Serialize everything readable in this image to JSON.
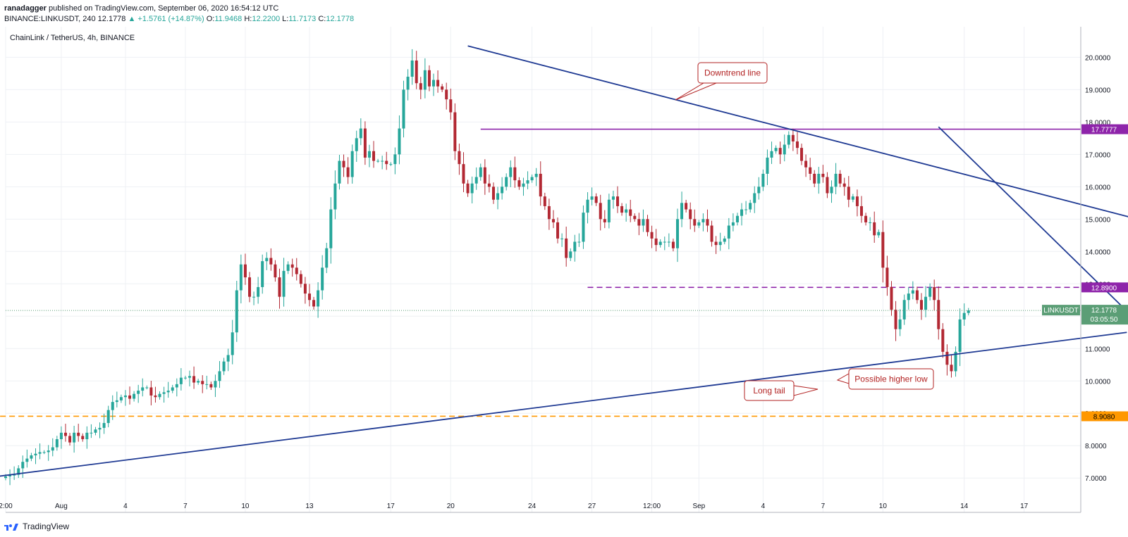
{
  "header": {
    "line1": {
      "user": "ranadagger",
      "rest": " published on TradingView.com, September 06, 2020 16:54:12 UTC"
    },
    "line2": {
      "prefix": "BINANCE:LINKUSDT, 240 ",
      "last": "12.1778",
      "change": "▲ +1.5761 (+14.87%)",
      "o_label": "O:",
      "o": "11.9468",
      "h_label": "H:",
      "h": "12.2200",
      "l_label": "L:",
      "l": "11.7173",
      "c_label": "C:",
      "c": "12.1778"
    }
  },
  "symbol_title": "ChainLink / TetherUS, 4h, BINANCE",
  "footer_brand": "TradingView",
  "colors": {
    "up": "#26a69a",
    "down": "#b22833",
    "trendline": "#1f3a93",
    "resistance": "#8e24aa",
    "support": "#ff9800",
    "annotation": "#b22222",
    "price_tag": "#5b9e76"
  },
  "chart_data": {
    "type": "candlestick",
    "title": "ChainLink / TetherUS, 4h, BINANCE",
    "timeframe": "4h",
    "ylim": [
      6.2,
      20.9
    ],
    "yticks": [
      7,
      8,
      9,
      10,
      11,
      12,
      13,
      14,
      15,
      16,
      17,
      18,
      19,
      20
    ],
    "ytick_labels": [
      "7.0000",
      "8.0000",
      "9.0000",
      "10.0000",
      "11.0000",
      "12.0000",
      "13.0000",
      "14.0000",
      "15.0000",
      "16.0000",
      "17.0000",
      "18.0000",
      "19.0000",
      "20.0000"
    ],
    "xticks": [
      {
        "label": "2:00",
        "bar": 0
      },
      {
        "label": "Aug",
        "bar": 13
      },
      {
        "label": "4",
        "bar": 28
      },
      {
        "label": "7",
        "bar": 42
      },
      {
        "label": "10",
        "bar": 56
      },
      {
        "label": "13",
        "bar": 71
      },
      {
        "label": "17",
        "bar": 90
      },
      {
        "label": "20",
        "bar": 104
      },
      {
        "label": "24",
        "bar": 123
      },
      {
        "label": "27",
        "bar": 137
      },
      {
        "label": "12:00",
        "bar": 151
      },
      {
        "label": "Sep",
        "bar": 162
      },
      {
        "label": "4",
        "bar": 177
      },
      {
        "label": "7",
        "bar": 191
      },
      {
        "label": "10",
        "bar": 205
      },
      {
        "label": "14",
        "bar": 224
      },
      {
        "label": "17",
        "bar": 238
      }
    ],
    "closes": [
      7.05,
      7.1,
      7.1,
      7.3,
      7.5,
      7.6,
      7.7,
      7.75,
      7.8,
      7.8,
      7.85,
      7.95,
      8.2,
      8.4,
      8.3,
      8.1,
      8.4,
      8.3,
      8.2,
      8.4,
      8.4,
      8.5,
      8.55,
      8.7,
      9.1,
      9.35,
      9.4,
      9.5,
      9.55,
      9.45,
      9.6,
      9.7,
      9.8,
      9.8,
      9.55,
      9.5,
      9.6,
      9.65,
      9.7,
      9.8,
      9.9,
      10.1,
      10.1,
      10.15,
      9.95,
      10.0,
      9.9,
      9.9,
      9.8,
      10.0,
      10.3,
      10.6,
      10.8,
      11.5,
      12.8,
      13.6,
      13.2,
      12.6,
      12.6,
      12.9,
      13.7,
      13.8,
      13.6,
      13.2,
      12.6,
      13.4,
      13.6,
      13.5,
      13.3,
      13.0,
      12.7,
      12.5,
      12.3,
      12.8,
      13.5,
      14.1,
      15.3,
      16.1,
      16.8,
      16.6,
      16.3,
      17.1,
      17.5,
      17.8,
      16.9,
      17.1,
      16.8,
      16.8,
      16.8,
      16.7,
      16.7,
      17.0,
      17.8,
      19.0,
      19.4,
      19.9,
      19.2,
      19.0,
      19.6,
      19.1,
      19.3,
      19.1,
      19.0,
      18.7,
      18.3,
      17.1,
      16.7,
      16.1,
      15.8,
      16.1,
      16.3,
      16.6,
      16.1,
      16.0,
      15.6,
      15.8,
      16.0,
      16.3,
      16.6,
      16.2,
      16.0,
      16.1,
      16.2,
      16.3,
      16.4,
      15.7,
      15.4,
      15.0,
      14.9,
      14.4,
      14.4,
      13.8,
      14.0,
      14.3,
      14.3,
      15.2,
      15.6,
      15.7,
      15.5,
      15.0,
      14.9,
      15.6,
      15.7,
      15.4,
      15.2,
      15.3,
      15.1,
      15.0,
      14.8,
      15.0,
      14.6,
      14.4,
      14.2,
      14.3,
      14.3,
      14.3,
      14.1,
      15.0,
      15.5,
      15.3,
      15.0,
      14.8,
      14.9,
      15.0,
      14.8,
      14.3,
      14.2,
      14.3,
      14.4,
      14.8,
      14.9,
      15.1,
      15.3,
      15.3,
      15.5,
      15.8,
      16.0,
      16.4,
      16.9,
      17.1,
      17.2,
      17.0,
      17.3,
      17.6,
      17.4,
      17.2,
      16.8,
      16.6,
      16.4,
      16.1,
      16.4,
      16.3,
      15.8,
      16.0,
      16.4,
      16.1,
      16.0,
      15.6,
      15.7,
      15.4,
      15.1,
      14.9,
      14.9,
      14.5,
      14.6,
      13.5,
      12.9,
      12.2,
      11.6,
      11.9,
      12.5,
      12.7,
      12.8,
      12.5,
      12.2,
      12.6,
      12.9,
      12.5,
      11.6,
      10.9,
      10.5,
      10.3,
      10.9,
      11.9,
      12.1,
      12.18
    ]
  },
  "overlays": {
    "downtrend_upper": {
      "from_bar": 108,
      "from_price": 20.35,
      "to_bar": 266,
      "to_price": 14.95
    },
    "downtrend_steep": {
      "from_bar": 218,
      "from_price": 17.85,
      "to_bar": 264,
      "to_price": 11.9
    },
    "uptrend_support": {
      "from_bar": -12,
      "from_price": 6.88,
      "to_bar": 262,
      "to_price": 11.5
    },
    "resistance_solid": {
      "price": 17.7777,
      "label": "17.7777",
      "from_bar": 111
    },
    "resistance_dashed": {
      "price": 12.89,
      "label": "12.8900",
      "from_bar": 136
    },
    "support_dashed": {
      "price": 8.908,
      "label": "8.9080",
      "from_bar": -12
    },
    "last_price": {
      "symbol": "LINKUSDT",
      "value": "12.1778",
      "countdown": "03:05:50"
    }
  },
  "annotations": {
    "downtrend_line": "Downtrend line",
    "long_tail": "Long tail",
    "higher_low": "Possible higher low"
  }
}
